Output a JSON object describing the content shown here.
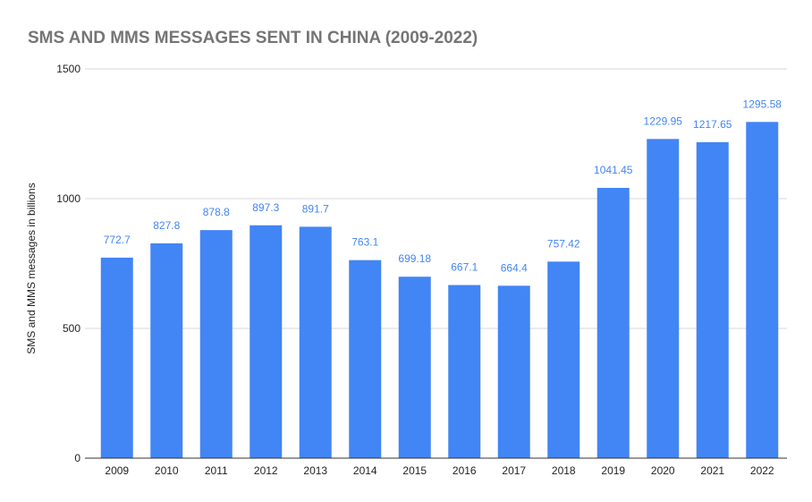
{
  "colors": {
    "bar": "#4285f4",
    "data_label": "#4285f4",
    "title": "#757575",
    "grid": "#d9d9d9",
    "background": "#ffffff"
  },
  "chart_data": {
    "type": "bar",
    "title": "SMS AND MMS MESSAGES SENT IN CHINA (2009-2022)",
    "xlabel": "",
    "ylabel": "SMS and MMS messages in billions",
    "categories": [
      "2009",
      "2010",
      "2011",
      "2012",
      "2013",
      "2014",
      "2015",
      "2016",
      "2017",
      "2018",
      "2019",
      "2020",
      "2021",
      "2022"
    ],
    "values": [
      772.7,
      827.8,
      878.8,
      897.3,
      891.7,
      763.1,
      699.18,
      667.1,
      664.4,
      757.42,
      1041.45,
      1229.95,
      1217.65,
      1295.58
    ],
    "value_labels": [
      "772.7",
      "827.8",
      "878.8",
      "897.3",
      "891.7",
      "763.1",
      "699.18",
      "667.1",
      "664.4",
      "757.42",
      "1041.45",
      "1229.95",
      "1217.65",
      "1295.58"
    ],
    "ylim": [
      0,
      1500
    ],
    "yticks": [
      "0",
      "500",
      "1000",
      "1500"
    ],
    "grid": true,
    "legend": "none"
  }
}
